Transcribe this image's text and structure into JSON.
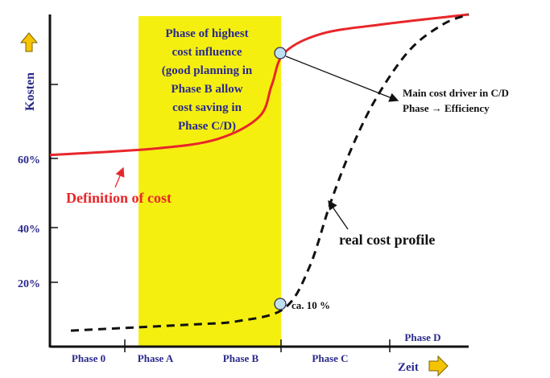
{
  "chart_data": {
    "type": "line",
    "ylabel": "Kosten",
    "xlabel": "Zeit",
    "yticks": [
      "20%",
      "40%",
      "60%"
    ],
    "phases": [
      "Phase 0",
      "Phase A",
      "Phase B",
      "Phase C",
      "Phase D"
    ],
    "series": [
      {
        "name": "Definition of cost",
        "style": "solid",
        "color": "#e8262a",
        "x": [
          0.0,
          0.25,
          0.4,
          0.5,
          0.53,
          0.56,
          0.65,
          0.8,
          1.0
        ],
        "y": [
          60,
          62,
          65,
          72,
          82,
          92,
          98,
          101,
          104
        ]
      },
      {
        "name": "real cost profile",
        "style": "dashed",
        "color": "#111111",
        "x": [
          0.05,
          0.2,
          0.35,
          0.45,
          0.56,
          0.62,
          0.67,
          0.72,
          0.78,
          0.86,
          0.94,
          1.0
        ],
        "y": [
          5,
          6,
          7,
          8,
          12,
          25,
          45,
          62,
          78,
          93,
          101,
          104
        ]
      }
    ],
    "highlight": {
      "color": "#f5ef10",
      "label_lines": [
        "Phase of highest",
        "cost influence",
        "(good planning in",
        "Phase B allow",
        "cost saving in",
        "Phase C/D)"
      ]
    },
    "annotations": {
      "cost_driver_line1": "Main cost driver in C/D",
      "cost_driver_line2": "Phase → Efficiency",
      "definition_label": "Definition of cost",
      "real_label": "real cost profile",
      "ca_label": "ca. 10 %"
    },
    "colors": {
      "axis_label": "#2a2a8c",
      "arrow_fill": "#f5c400",
      "marker_fill": "#bfe0ee"
    }
  }
}
